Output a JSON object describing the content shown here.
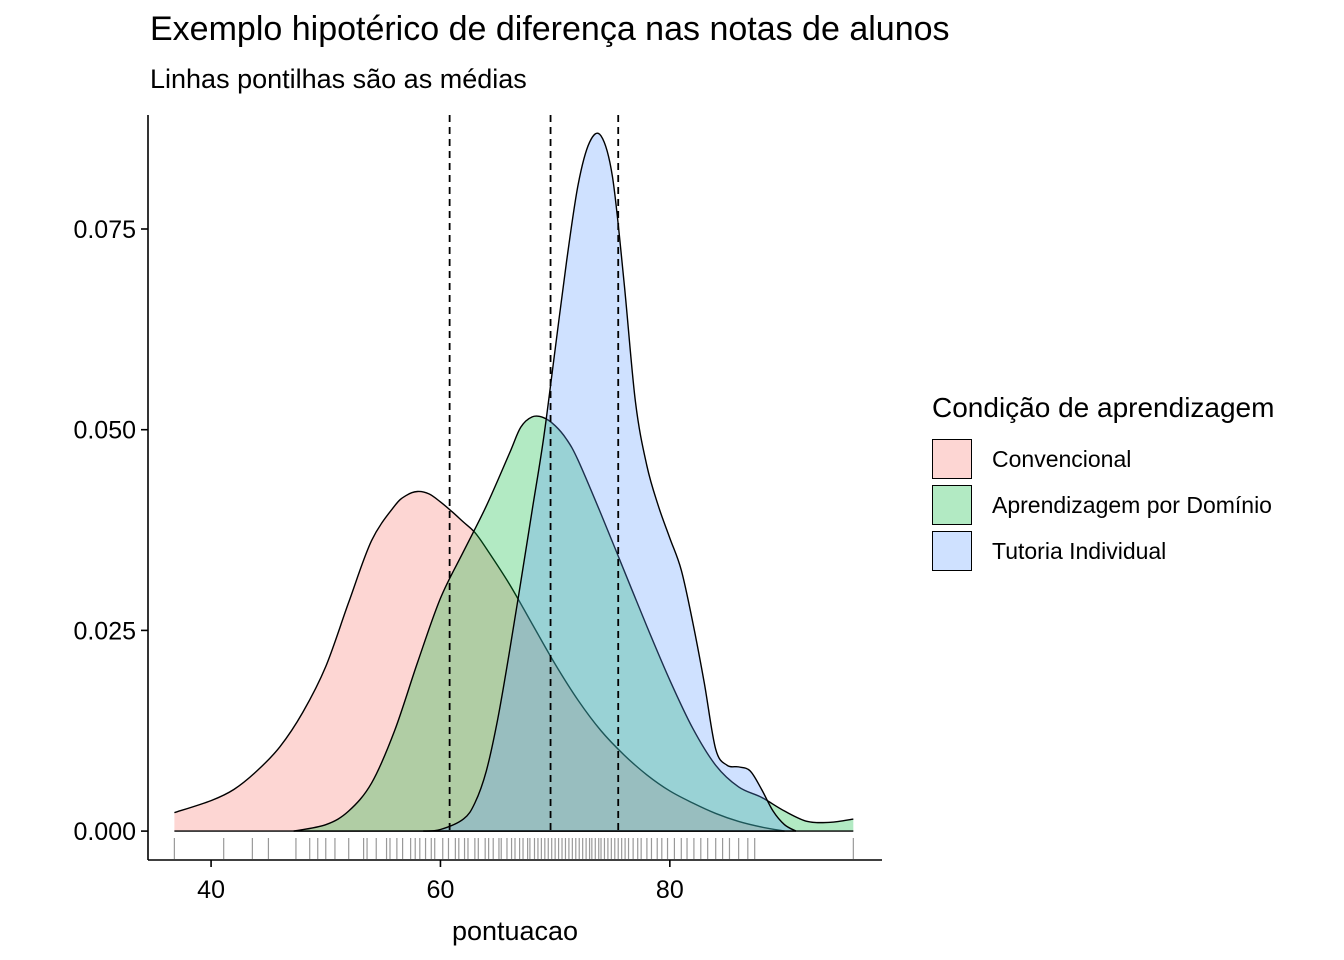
{
  "chart_data": {
    "type": "area",
    "title": "Exemplo hipotérico de diferença nas notas de alunos",
    "subtitle": "Linhas pontilhas são as médias",
    "xlabel": "pontuacao",
    "ylabel": "",
    "xlim": [
      34.5,
      98.5
    ],
    "ylim": [
      -0.0036,
      0.0892
    ],
    "x_ticks": [
      40,
      60,
      80
    ],
    "x_tick_labels": [
      "40",
      "60",
      "80"
    ],
    "y_ticks": [
      0,
      0.025,
      0.05,
      0.075
    ],
    "y_tick_labels": [
      "0.000",
      "0.025",
      "0.050",
      "0.075"
    ],
    "grid": false,
    "legend": {
      "title": "Condição de aprendizagem",
      "position": "right"
    },
    "means": [
      60.8,
      69.6,
      75.5
    ],
    "series": [
      {
        "name": "Convencional",
        "color": "#F8766D",
        "x": [
          36.8,
          40,
          42,
          44,
          46,
          48,
          50,
          52,
          54,
          56,
          57,
          58,
          59,
          60,
          61,
          62,
          63,
          64,
          66,
          68,
          70,
          72,
          74,
          76,
          78,
          80,
          82,
          84,
          86,
          88,
          90
        ],
        "y": [
          0.0023,
          0.0038,
          0.0052,
          0.0075,
          0.0105,
          0.0148,
          0.0205,
          0.0285,
          0.0362,
          0.0405,
          0.0418,
          0.0423,
          0.042,
          0.041,
          0.0398,
          0.0385,
          0.0372,
          0.0352,
          0.0308,
          0.0258,
          0.0208,
          0.0163,
          0.0125,
          0.0095,
          0.007,
          0.005,
          0.0035,
          0.0022,
          0.0012,
          0.0005,
          0.0
        ]
      },
      {
        "name": "Aprendizagem por Domínio",
        "color": "#00BA38",
        "x": [
          47.2,
          50,
          52,
          54,
          56,
          58,
          60,
          62,
          64,
          66,
          67,
          68,
          69,
          70,
          71,
          72,
          74,
          76,
          78,
          80,
          82,
          84,
          86,
          88,
          90,
          92,
          94,
          96
        ],
        "y": [
          0.0,
          0.0008,
          0.0025,
          0.006,
          0.0125,
          0.021,
          0.029,
          0.0348,
          0.0405,
          0.047,
          0.0503,
          0.0516,
          0.0515,
          0.0505,
          0.0488,
          0.0462,
          0.0395,
          0.0325,
          0.0255,
          0.0188,
          0.0128,
          0.0082,
          0.0055,
          0.0042,
          0.0025,
          0.0012,
          0.0011,
          0.0015
        ]
      },
      {
        "name": "Tutoria Individual",
        "color": "#619CFF",
        "x": [
          58.5,
          60,
          62,
          63,
          64,
          65,
          66,
          67,
          68,
          69,
          70,
          71,
          72,
          73,
          74,
          75,
          76,
          77,
          78,
          79,
          80,
          81,
          82,
          83,
          84,
          85,
          86,
          87,
          88,
          89,
          90,
          91
        ],
        "y": [
          0.0,
          0.0002,
          0.0015,
          0.0035,
          0.0075,
          0.014,
          0.0222,
          0.031,
          0.04,
          0.049,
          0.06,
          0.071,
          0.0805,
          0.0858,
          0.0866,
          0.0815,
          0.0685,
          0.0535,
          0.0455,
          0.0405,
          0.0365,
          0.0325,
          0.026,
          0.0185,
          0.0102,
          0.0082,
          0.008,
          0.0075,
          0.0052,
          0.0025,
          0.0008,
          0.0
        ]
      }
    ],
    "rug": [
      36.8,
      41.1,
      43.6,
      45.0,
      47.4,
      48.6,
      49.3,
      50.0,
      50.8,
      52.0,
      53.3,
      53.6,
      54.4,
      55.3,
      55.6,
      56.2,
      56.7,
      57.4,
      57.8,
      58.2,
      58.7,
      59.2,
      59.5,
      60.2,
      60.7,
      61.3,
      61.6,
      62.1,
      62.4,
      63.0,
      63.3,
      63.9,
      64.2,
      64.6,
      65.1,
      65.3,
      65.8,
      66.2,
      66.5,
      66.9,
      67.2,
      67.6,
      67.8,
      68.2,
      68.5,
      68.8,
      69.1,
      69.4,
      69.7,
      70.0,
      70.3,
      70.6,
      70.9,
      71.2,
      71.5,
      71.8,
      72.1,
      72.4,
      72.7,
      73.0,
      73.2,
      73.5,
      73.8,
      74.0,
      74.3,
      74.6,
      74.9,
      75.2,
      75.5,
      75.8,
      76.1,
      76.4,
      76.8,
      77.2,
      77.5,
      78.0,
      78.4,
      78.9,
      79.3,
      79.8,
      80.4,
      81.0,
      81.5,
      82.1,
      82.7,
      83.3,
      84.0,
      84.6,
      85.2,
      86.0,
      86.8,
      87.4,
      96.0
    ]
  }
}
